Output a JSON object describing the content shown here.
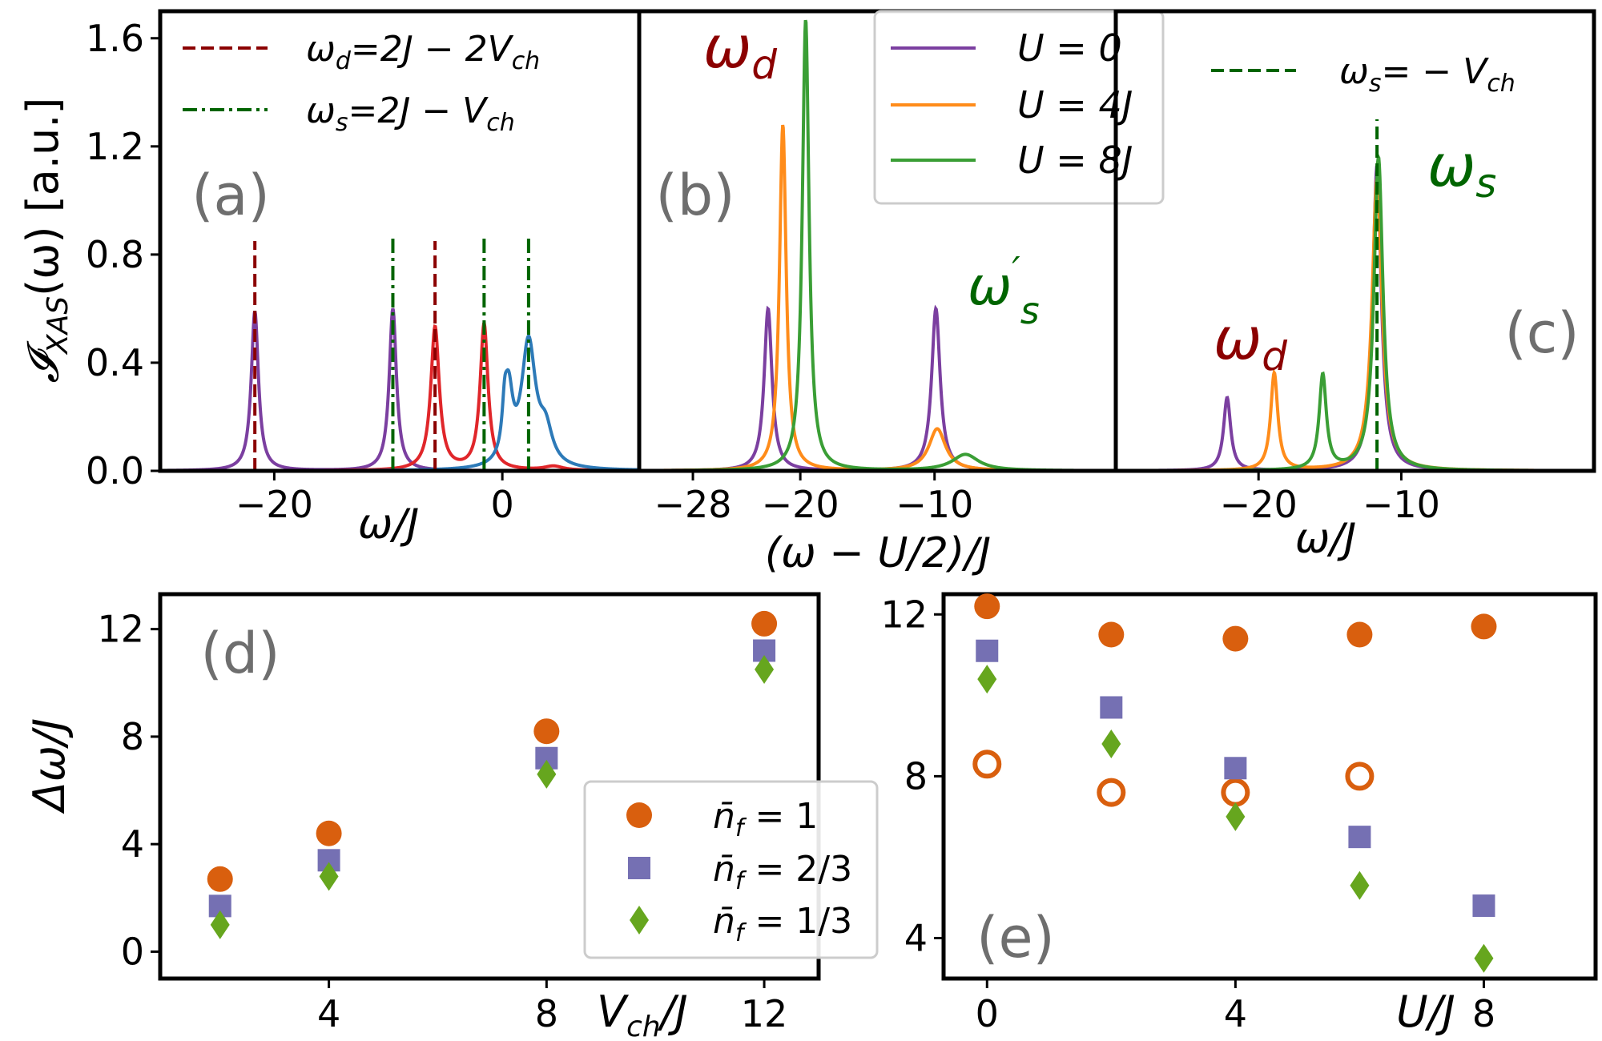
{
  "figure": {
    "ylabel_top": "𝓘XAS(ω) [a.u.]",
    "ylabel_bottom": "Δω/J",
    "ylabel_top_main": "𝓘",
    "ylabel_top_sub": "XAS",
    "ylabel_top_rest": "(ω) [a.u.]",
    "ylabel_bottom_main": "Δω/J"
  },
  "chart_data": [
    {
      "id": "a",
      "type": "line",
      "panel_label": "(a)",
      "xlabel": "ω/J",
      "ylabel": "𝓘XAS(ω) [a.u.]",
      "xlim": [
        -30,
        12
      ],
      "ylim": [
        0,
        1.7
      ],
      "xticks": [
        -20,
        0
      ],
      "yticks": [
        0.0,
        0.4,
        0.8,
        1.2,
        1.6
      ],
      "ytick_labels": [
        "0.0",
        "0.4",
        "0.8",
        "1.2",
        "1.6"
      ],
      "series": [
        {
          "name": "purple",
          "color": "#7b3fa0",
          "peaks": [
            {
              "x": -21.7,
              "h": 0.59,
              "w": 0.38
            },
            {
              "x": -9.6,
              "h": 0.6,
              "w": 0.38
            }
          ]
        },
        {
          "name": "red",
          "color": "#e0262a",
          "peaks": [
            {
              "x": -5.9,
              "h": 0.53,
              "w": 0.45
            },
            {
              "x": -1.6,
              "h": 0.54,
              "w": 0.42
            },
            {
              "x": 4.5,
              "h": 0.015,
              "w": 1.0
            }
          ]
        },
        {
          "name": "blue",
          "color": "#2d7ab8",
          "peaks": [
            {
              "x": 2.3,
              "h": 0.46,
              "w": 0.75
            },
            {
              "x": 3.8,
              "h": 0.12,
              "w": 0.7
            },
            {
              "x": 0.55,
              "h": 0.25,
              "w": 0.45
            },
            {
              "x": 0.2,
              "h": 0.13,
              "w": 0.25
            }
          ]
        }
      ],
      "vlines": [
        {
          "x": -21.7,
          "color": "#8b0000",
          "style": "dashed",
          "ymax": 0.85
        },
        {
          "x": -5.9,
          "color": "#8b0000",
          "style": "dashed",
          "ymax": 0.85
        },
        {
          "x": -9.6,
          "color": "#006400",
          "style": "dashdot",
          "ymax": 0.86
        },
        {
          "x": -1.6,
          "color": "#006400",
          "style": "dashdot",
          "ymax": 0.86
        },
        {
          "x": 2.3,
          "color": "#006400",
          "style": "dashdot",
          "ymax": 0.86
        }
      ],
      "legend": {
        "position": "upper-right",
        "entries": [
          {
            "label": "ωd=2J − 2Vch",
            "color": "#8b0000",
            "style": "dashed",
            "main": "ω",
            "sub": "d",
            "rest": "=2J − 2V",
            "sub2": "ch"
          },
          {
            "label": "ωs=2J − Vch",
            "color": "#006400",
            "style": "dashdot",
            "main": "ω",
            "sub": "s",
            "rest": "=2J − V",
            "sub2": "ch"
          }
        ]
      }
    },
    {
      "id": "b",
      "type": "line",
      "panel_label": "(b)",
      "xlabel": "(ω − U/2)/J",
      "xlim": [
        -32,
        3.5
      ],
      "ylim": [
        0,
        1.7
      ],
      "xticks": [
        -28,
        -20,
        -10
      ],
      "series": [
        {
          "name": "U=0",
          "color": "#7b3fa0",
          "peaks": [
            {
              "x": -22.4,
              "h": 0.6,
              "w": 0.35
            },
            {
              "x": -9.9,
              "h": 0.6,
              "w": 0.38
            }
          ]
        },
        {
          "name": "U=4J",
          "color": "#ff8c1a",
          "peaks": [
            {
              "x": -21.3,
              "h": 1.28,
              "w": 0.3
            },
            {
              "x": -9.8,
              "h": 0.155,
              "w": 0.75
            }
          ]
        },
        {
          "name": "U=8J",
          "color": "#3a9e35",
          "peaks": [
            {
              "x": -19.6,
              "h": 1.67,
              "w": 0.3
            },
            {
              "x": -7.7,
              "h": 0.06,
              "w": 1.2
            }
          ]
        }
      ],
      "annotations": [
        {
          "id": "omega-d",
          "text": "ωd",
          "main": "ω",
          "sub": "d",
          "color": "#8b0000"
        },
        {
          "id": "omega-s-prime",
          "text": "ω′s",
          "main": "ω",
          "sup": "′",
          "sub": "s",
          "color": "#006400"
        }
      ],
      "legend": {
        "position": "upper-right",
        "entries": [
          {
            "label": "U = 0",
            "color": "#7b3fa0",
            "style": "solid"
          },
          {
            "label": "U = 4J",
            "color": "#ff8c1a",
            "style": "solid"
          },
          {
            "label": "U = 8J",
            "color": "#3a9e35",
            "style": "solid"
          }
        ]
      }
    },
    {
      "id": "c",
      "type": "line",
      "panel_label": "(c)",
      "xlabel": "ω/J",
      "xlim": [
        -30,
        3.5
      ],
      "ylim": [
        0,
        1.7
      ],
      "xticks": [
        -20,
        -10
      ],
      "series": [
        {
          "name": "U=0",
          "color": "#7b3fa0",
          "peaks": [
            {
              "x": -22.2,
              "h": 0.27,
              "w": 0.3
            },
            {
              "x": -11.7,
              "h": 1.13,
              "w": 0.36
            }
          ]
        },
        {
          "name": "U=4J",
          "color": "#ff8c1a",
          "peaks": [
            {
              "x": -18.9,
              "h": 0.36,
              "w": 0.3
            },
            {
              "x": -11.7,
              "h": 1.08,
              "w": 0.42
            }
          ]
        },
        {
          "name": "U=8J",
          "color": "#3a9e35",
          "peaks": [
            {
              "x": -15.5,
              "h": 0.35,
              "w": 0.3
            },
            {
              "x": -11.6,
              "h": 1.16,
              "w": 0.38
            }
          ]
        }
      ],
      "vlines": [
        {
          "x": -11.7,
          "color": "#006400",
          "style": "dashed",
          "ymax": 1.3
        }
      ],
      "annotations": [
        {
          "id": "omega-s",
          "text": "ωs",
          "main": "ω",
          "sub": "s",
          "color": "#006400"
        },
        {
          "id": "omega-d",
          "text": "ωd",
          "main": "ω",
          "sub": "d",
          "color": "#8b0000"
        }
      ],
      "legend": {
        "position": "upper-right",
        "entries": [
          {
            "label": "ωs= − Vch",
            "color": "#006400",
            "style": "dashed",
            "main": "ω",
            "sub": "s",
            "rest": "= − V",
            "sub2": "ch"
          }
        ]
      }
    },
    {
      "id": "d",
      "type": "scatter",
      "panel_label": "(d)",
      "xlabel": "Vch/J",
      "xlabel_main": "V",
      "xlabel_sub": "ch",
      "xlabel_rest": "/J",
      "ylabel": "Δω/J",
      "xlim": [
        0.9,
        13
      ],
      "ylim": [
        -1,
        13.3
      ],
      "xticks": [
        4,
        8,
        12
      ],
      "yticks": [
        0,
        4,
        8,
        12
      ],
      "series": [
        {
          "name": "n̄f = 1",
          "marker": "circle",
          "color": "#d95f0e",
          "x": [
            2,
            4,
            8,
            12
          ],
          "y": [
            2.7,
            4.4,
            8.2,
            12.2
          ]
        },
        {
          "name": "n̄f = 2/3",
          "marker": "square",
          "color": "#7570b3",
          "x": [
            2,
            4,
            8,
            12
          ],
          "y": [
            1.7,
            3.4,
            7.2,
            11.2
          ]
        },
        {
          "name": "n̄f = 1/3",
          "marker": "diamond",
          "color": "#66a61e",
          "x": [
            2,
            4,
            8,
            12
          ],
          "y": [
            1.0,
            2.8,
            6.6,
            10.5
          ]
        }
      ],
      "legend": {
        "position": "lower-right",
        "entries": [
          {
            "label": "n̄f = 1",
            "marker": "circle",
            "color": "#d95f0e",
            "main": "n̄",
            "sub": "f",
            "rest": " = 1"
          },
          {
            "label": "n̄f = 2/3",
            "marker": "square",
            "color": "#7570b3",
            "main": "n̄",
            "sub": "f",
            "rest": " = 2/3"
          },
          {
            "label": "n̄f = 1/3",
            "marker": "diamond",
            "color": "#66a61e",
            "main": "n̄",
            "sub": "f",
            "rest": " = 1/3"
          }
        ]
      }
    },
    {
      "id": "e",
      "type": "scatter",
      "panel_label": "(e)",
      "xlabel": "U/J",
      "xlim": [
        -0.7,
        9.8
      ],
      "ylim": [
        3,
        12.5
      ],
      "xticks": [
        0,
        4,
        8
      ],
      "yticks": [
        4,
        8,
        12
      ],
      "series": [
        {
          "name": "n̄f = 1",
          "marker": "circle",
          "color": "#d95f0e",
          "x": [
            0,
            2,
            4,
            6,
            8
          ],
          "y": [
            12.2,
            11.5,
            11.4,
            11.5,
            11.7
          ]
        },
        {
          "name": "n̄f = 1 (open)",
          "marker": "open-circle",
          "color": "#d95f0e",
          "x": [
            0,
            2,
            4,
            6
          ],
          "y": [
            8.3,
            7.6,
            7.6,
            8.0
          ]
        },
        {
          "name": "n̄f = 2/3",
          "marker": "square",
          "color": "#7570b3",
          "x": [
            0,
            2,
            4,
            6,
            8
          ],
          "y": [
            11.1,
            9.7,
            8.2,
            6.5,
            4.8
          ]
        },
        {
          "name": "n̄f = 1/3",
          "marker": "diamond",
          "color": "#66a61e",
          "x": [
            0,
            2,
            4,
            6,
            8
          ],
          "y": [
            10.4,
            8.8,
            7.0,
            5.3,
            3.5
          ]
        }
      ]
    }
  ]
}
